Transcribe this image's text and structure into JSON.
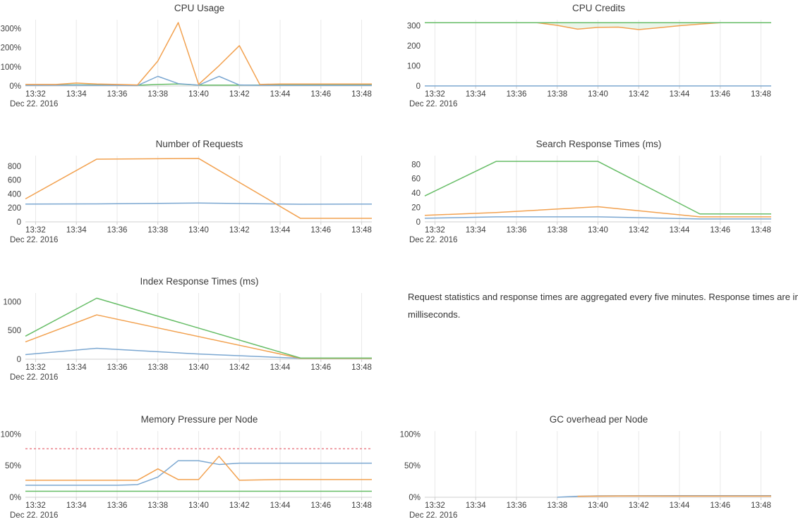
{
  "palette": {
    "blue": "#7ba7d1",
    "orange": "#f2a14f",
    "green": "#67bd67",
    "red": "#e9808a",
    "gridline": "#e9e9e9",
    "axis": "#cfcfcf",
    "tick_label": "#3f3f3f"
  },
  "note": {
    "lines": [
      "Request statistics and response times are aggregated every five minutes. Response times are in",
      "milliseconds."
    ]
  },
  "chart_data": [
    {
      "type": "line",
      "title": "CPU Usage",
      "x_date_label": "Dec 22. 2016",
      "xlim": [
        31.5,
        48.5
      ],
      "ylim": [
        0,
        345
      ],
      "grid": "vertical-only",
      "legend": "none",
      "x_ticks": [
        {
          "v": 32,
          "label": "13:32"
        },
        {
          "v": 34,
          "label": "13:34"
        },
        {
          "v": 36,
          "label": "13:36"
        },
        {
          "v": 38,
          "label": "13:38"
        },
        {
          "v": 40,
          "label": "13:40"
        },
        {
          "v": 42,
          "label": "13:42"
        },
        {
          "v": 44,
          "label": "13:44"
        },
        {
          "v": 46,
          "label": "13:46"
        },
        {
          "v": 48,
          "label": "13:48"
        }
      ],
      "y_ticks": [
        {
          "v": 0,
          "label": "0%"
        },
        {
          "v": 100,
          "label": "100%"
        },
        {
          "v": 200,
          "label": "200%"
        },
        {
          "v": 300,
          "label": "300%"
        }
      ],
      "series": [
        {
          "name": "green",
          "color": "green",
          "dash": false,
          "points": [
            [
              31.5,
              4
            ],
            [
              34,
              6
            ],
            [
              36,
              4
            ],
            [
              37,
              3
            ],
            [
              38,
              8
            ],
            [
              39,
              10
            ],
            [
              40,
              4
            ],
            [
              42,
              4
            ],
            [
              44,
              5
            ],
            [
              48.5,
              5
            ]
          ]
        },
        {
          "name": "blue",
          "color": "blue",
          "dash": false,
          "points": [
            [
              31.5,
              3
            ],
            [
              34,
              4
            ],
            [
              36,
              3
            ],
            [
              37,
              2
            ],
            [
              38,
              50
            ],
            [
              39,
              12
            ],
            [
              40,
              4
            ],
            [
              41,
              50
            ],
            [
              42,
              5
            ],
            [
              43,
              3
            ],
            [
              45,
              3
            ],
            [
              48.5,
              3
            ]
          ]
        },
        {
          "name": "orange",
          "color": "orange",
          "dash": false,
          "points": [
            [
              31.5,
              8
            ],
            [
              33,
              8
            ],
            [
              34,
              15
            ],
            [
              35,
              10
            ],
            [
              36,
              8
            ],
            [
              37,
              5
            ],
            [
              38,
              130
            ],
            [
              39,
              330
            ],
            [
              40,
              8
            ],
            [
              41,
              105
            ],
            [
              42,
              210
            ],
            [
              43,
              8
            ],
            [
              44,
              10
            ],
            [
              45,
              10
            ],
            [
              46,
              10
            ],
            [
              47,
              10
            ],
            [
              48.5,
              10
            ]
          ]
        }
      ]
    },
    {
      "type": "line",
      "title": "CPU Credits",
      "x_date_label": "Dec 22. 2016",
      "xlim": [
        31.5,
        48.5
      ],
      "ylim": [
        0,
        330
      ],
      "grid": "vertical-only",
      "legend": "none",
      "band": {
        "lower": "orange",
        "upper": "green",
        "color": "green",
        "opacity": 0.14
      },
      "x_ticks": [
        {
          "v": 32,
          "label": "13:32"
        },
        {
          "v": 34,
          "label": "13:34"
        },
        {
          "v": 36,
          "label": "13:36"
        },
        {
          "v": 38,
          "label": "13:38"
        },
        {
          "v": 40,
          "label": "13:40"
        },
        {
          "v": 42,
          "label": "13:42"
        },
        {
          "v": 44,
          "label": "13:44"
        },
        {
          "v": 46,
          "label": "13:46"
        },
        {
          "v": 48,
          "label": "13:48"
        }
      ],
      "y_ticks": [
        {
          "v": 0,
          "label": "0"
        },
        {
          "v": 100,
          "label": "100"
        },
        {
          "v": 200,
          "label": "200"
        },
        {
          "v": 300,
          "label": "300"
        }
      ],
      "series": [
        {
          "name": "blue",
          "color": "blue",
          "dash": false,
          "points": [
            [
              31.5,
              0
            ],
            [
              48.5,
              0
            ]
          ]
        },
        {
          "name": "orange",
          "color": "orange",
          "dash": false,
          "points": [
            [
              31.5,
              315
            ],
            [
              37,
              315
            ],
            [
              38,
              302
            ],
            [
              39,
              283
            ],
            [
              40,
              292
            ],
            [
              41,
              293
            ],
            [
              42,
              281
            ],
            [
              43,
              290
            ],
            [
              44,
              300
            ],
            [
              45,
              308
            ],
            [
              46,
              315
            ],
            [
              48.5,
              315
            ]
          ]
        },
        {
          "name": "green",
          "color": "green",
          "dash": false,
          "points": [
            [
              31.5,
              315
            ],
            [
              48.5,
              315
            ]
          ]
        }
      ]
    },
    {
      "type": "line",
      "title": "Number of Requests",
      "x_date_label": "Dec 22. 2016",
      "xlim": [
        31.5,
        48.5
      ],
      "ylim": [
        0,
        950
      ],
      "grid": "vertical-only",
      "legend": "none",
      "x_ticks": [
        {
          "v": 32,
          "label": "13:32"
        },
        {
          "v": 34,
          "label": "13:34"
        },
        {
          "v": 36,
          "label": "13:36"
        },
        {
          "v": 38,
          "label": "13:38"
        },
        {
          "v": 40,
          "label": "13:40"
        },
        {
          "v": 42,
          "label": "13:42"
        },
        {
          "v": 44,
          "label": "13:44"
        },
        {
          "v": 46,
          "label": "13:46"
        },
        {
          "v": 48,
          "label": "13:48"
        }
      ],
      "y_ticks": [
        {
          "v": 0,
          "label": "0"
        },
        {
          "v": 200,
          "label": "200"
        },
        {
          "v": 400,
          "label": "400"
        },
        {
          "v": 600,
          "label": "600"
        },
        {
          "v": 800,
          "label": "800"
        }
      ],
      "series": [
        {
          "name": "blue",
          "color": "blue",
          "dash": false,
          "points": [
            [
              31.5,
              255
            ],
            [
              35,
              258
            ],
            [
              40,
              270
            ],
            [
              45,
              253
            ],
            [
              48.5,
              255
            ]
          ]
        },
        {
          "name": "orange",
          "color": "orange",
          "dash": false,
          "points": [
            [
              31.5,
              330
            ],
            [
              35,
              900
            ],
            [
              40,
              910
            ],
            [
              45,
              50
            ],
            [
              48.5,
              50
            ]
          ]
        }
      ]
    },
    {
      "type": "line",
      "title": "Search Response Times (ms)",
      "x_date_label": "Dec 22. 2016",
      "xlim": [
        31.5,
        48.5
      ],
      "ylim": [
        0,
        92
      ],
      "grid": "vertical-only",
      "legend": "none",
      "x_ticks": [
        {
          "v": 32,
          "label": "13:32"
        },
        {
          "v": 34,
          "label": "13:34"
        },
        {
          "v": 36,
          "label": "13:36"
        },
        {
          "v": 38,
          "label": "13:38"
        },
        {
          "v": 40,
          "label": "13:40"
        },
        {
          "v": 42,
          "label": "13:42"
        },
        {
          "v": 44,
          "label": "13:44"
        },
        {
          "v": 46,
          "label": "13:46"
        },
        {
          "v": 48,
          "label": "13:48"
        }
      ],
      "y_ticks": [
        {
          "v": 0,
          "label": "0"
        },
        {
          "v": 20,
          "label": "20"
        },
        {
          "v": 40,
          "label": "40"
        },
        {
          "v": 60,
          "label": "60"
        },
        {
          "v": 80,
          "label": "80"
        }
      ],
      "series": [
        {
          "name": "blue",
          "color": "blue",
          "dash": false,
          "points": [
            [
              31.5,
              5
            ],
            [
              35,
              7
            ],
            [
              40,
              7
            ],
            [
              45,
              4
            ],
            [
              48.5,
              4
            ]
          ]
        },
        {
          "name": "orange",
          "color": "orange",
          "dash": false,
          "points": [
            [
              31.5,
              9
            ],
            [
              35,
              13
            ],
            [
              40,
              21
            ],
            [
              45,
              7
            ],
            [
              48.5,
              7
            ]
          ]
        },
        {
          "name": "green",
          "color": "green",
          "dash": false,
          "points": [
            [
              31.5,
              36
            ],
            [
              35,
              84
            ],
            [
              40,
              84
            ],
            [
              45,
              11
            ],
            [
              48.5,
              11
            ]
          ]
        }
      ]
    },
    {
      "type": "line",
      "title": "Index Response Times (ms)",
      "x_date_label": "Dec 22. 2016",
      "xlim": [
        31.5,
        48.5
      ],
      "ylim": [
        0,
        1150
      ],
      "grid": "vertical-only",
      "legend": "none",
      "x_ticks": [
        {
          "v": 32,
          "label": "13:32"
        },
        {
          "v": 34,
          "label": "13:34"
        },
        {
          "v": 36,
          "label": "13:36"
        },
        {
          "v": 38,
          "label": "13:38"
        },
        {
          "v": 40,
          "label": "13:40"
        },
        {
          "v": 42,
          "label": "13:42"
        },
        {
          "v": 44,
          "label": "13:44"
        },
        {
          "v": 46,
          "label": "13:46"
        },
        {
          "v": 48,
          "label": "13:48"
        }
      ],
      "y_ticks": [
        {
          "v": 0,
          "label": "0"
        },
        {
          "v": 500,
          "label": "500"
        },
        {
          "v": 1000,
          "label": "1000"
        }
      ],
      "series": [
        {
          "name": "blue",
          "color": "blue",
          "dash": false,
          "points": [
            [
              31.5,
              80
            ],
            [
              35,
              190
            ],
            [
              40,
              90
            ],
            [
              45,
              15
            ],
            [
              48.5,
              15
            ]
          ]
        },
        {
          "name": "orange",
          "color": "orange",
          "dash": false,
          "points": [
            [
              31.5,
              300
            ],
            [
              35,
              770
            ],
            [
              45,
              15
            ],
            [
              48.5,
              15
            ]
          ]
        },
        {
          "name": "green",
          "color": "green",
          "dash": false,
          "points": [
            [
              31.5,
              400
            ],
            [
              35,
              1060
            ],
            [
              45,
              20
            ],
            [
              48.5,
              20
            ]
          ]
        }
      ]
    },
    {
      "type": "line",
      "title": "Memory Pressure per Node",
      "x_date_label": "Dec 22. 2016",
      "xlim": [
        31.5,
        48.5
      ],
      "ylim": [
        0,
        105
      ],
      "grid": "vertical-only",
      "legend": "none",
      "x_ticks": [
        {
          "v": 32,
          "label": "13:32"
        },
        {
          "v": 34,
          "label": "13:34"
        },
        {
          "v": 36,
          "label": "13:36"
        },
        {
          "v": 38,
          "label": "13:38"
        },
        {
          "v": 40,
          "label": "13:40"
        },
        {
          "v": 42,
          "label": "13:42"
        },
        {
          "v": 44,
          "label": "13:44"
        },
        {
          "v": 46,
          "label": "13:46"
        },
        {
          "v": 48,
          "label": "13:48"
        }
      ],
      "y_ticks": [
        {
          "v": 0,
          "label": "0%"
        },
        {
          "v": 50,
          "label": "50%"
        },
        {
          "v": 100,
          "label": "100%"
        }
      ],
      "series": [
        {
          "name": "threshold",
          "color": "red",
          "dash": true,
          "points": [
            [
              31.5,
              77
            ],
            [
              48.5,
              77
            ]
          ]
        },
        {
          "name": "green",
          "color": "green",
          "dash": false,
          "points": [
            [
              31.5,
              9.5
            ],
            [
              48.5,
              9.5
            ]
          ]
        },
        {
          "name": "blue",
          "color": "blue",
          "dash": false,
          "points": [
            [
              31.5,
              19
            ],
            [
              36,
              19
            ],
            [
              37,
              20
            ],
            [
              38,
              32
            ],
            [
              39,
              58
            ],
            [
              40,
              58
            ],
            [
              41,
              52
            ],
            [
              42,
              54
            ],
            [
              48.5,
              54
            ]
          ]
        },
        {
          "name": "orange",
          "color": "orange",
          "dash": false,
          "points": [
            [
              31.5,
              27
            ],
            [
              37,
              27
            ],
            [
              38,
              45
            ],
            [
              39,
              28
            ],
            [
              40,
              28
            ],
            [
              41,
              65
            ],
            [
              42,
              27
            ],
            [
              44,
              28
            ],
            [
              48.5,
              28
            ]
          ]
        }
      ]
    },
    {
      "type": "line",
      "title": "GC overhead per Node",
      "x_date_label": "Dec 22. 2016",
      "xlim": [
        31.5,
        48.5
      ],
      "ylim": [
        0,
        105
      ],
      "grid": "vertical-only",
      "legend": "none",
      "x_ticks": [
        {
          "v": 32,
          "label": "13:32"
        },
        {
          "v": 34,
          "label": "13:34"
        },
        {
          "v": 36,
          "label": "13:36"
        },
        {
          "v": 38,
          "label": "13:38"
        },
        {
          "v": 40,
          "label": "13:40"
        },
        {
          "v": 42,
          "label": "13:42"
        },
        {
          "v": 44,
          "label": "13:44"
        },
        {
          "v": 46,
          "label": "13:46"
        },
        {
          "v": 48,
          "label": "13:48"
        }
      ],
      "y_ticks": [
        {
          "v": 0,
          "label": "0%"
        },
        {
          "v": 50,
          "label": "50%"
        },
        {
          "v": 100,
          "label": "100%"
        }
      ],
      "series": [
        {
          "name": "blue",
          "color": "blue",
          "dash": false,
          "points": [
            [
              38,
              0
            ],
            [
              39,
              1.5
            ],
            [
              40,
              2.2
            ],
            [
              44,
              2.5
            ],
            [
              48.5,
              2.5
            ]
          ]
        },
        {
          "name": "orange",
          "color": "orange",
          "dash": false,
          "points": [
            [
              39,
              1.5
            ],
            [
              41,
              2
            ],
            [
              44,
              1.8
            ],
            [
              48.5,
              1.8
            ]
          ]
        }
      ]
    }
  ]
}
